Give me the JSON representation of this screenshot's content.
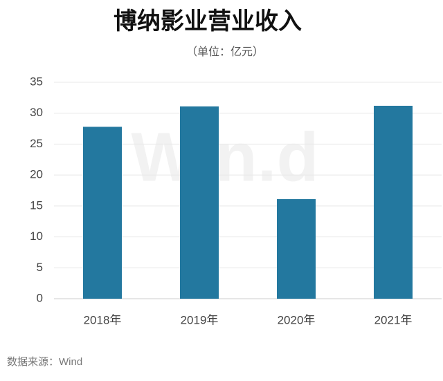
{
  "chart_data": {
    "type": "bar",
    "title": "博纳影业营业收入",
    "subtitle": "（单位：亿元）",
    "source": "数据来源：Wind",
    "watermark": "Win.d",
    "categories": [
      "2018年",
      "2019年",
      "2020年",
      "2021年"
    ],
    "values": [
      27.8,
      31.1,
      16.1,
      31.2
    ],
    "color": "#23789f",
    "ylim": [
      0,
      35
    ],
    "yticks": [
      0,
      5,
      10,
      15,
      20,
      25,
      30,
      35
    ],
    "grid": true
  }
}
